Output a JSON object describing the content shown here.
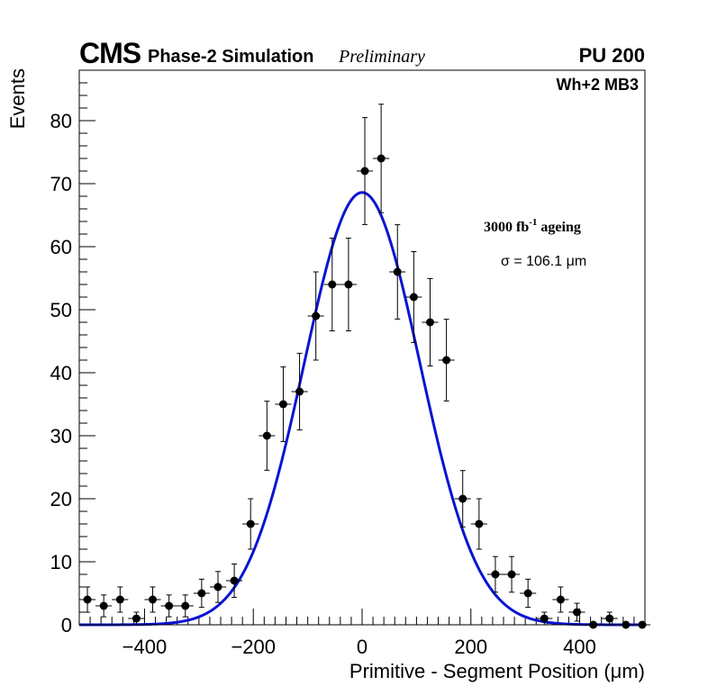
{
  "header": {
    "experiment": "CMS",
    "subtitle": "Phase-2 Simulation",
    "status": "Preliminary",
    "pileup": "PU 200",
    "chamber": "Wh+2 MB3"
  },
  "annotations": {
    "ageing_main": "3000 fb",
    "ageing_sup": "-1",
    "ageing_tail": " ageing",
    "sigma": "σ = 106.1 μm"
  },
  "chart_data": {
    "type": "scatter",
    "xlabel": "Primitive - Segment Position (μm)",
    "ylabel": "Events",
    "xlim": [
      -520,
      520
    ],
    "ylim": [
      0,
      88
    ],
    "x_ticks": [
      -400,
      -200,
      0,
      200,
      400
    ],
    "x_tick_labels": [
      "−400",
      "−200",
      "0",
      "200",
      "400"
    ],
    "y_ticks": [
      0,
      10,
      20,
      30,
      40,
      50,
      60,
      70,
      80
    ],
    "y_tick_labels": [
      "0",
      "10",
      "20",
      "30",
      "40",
      "50",
      "60",
      "70",
      "80"
    ],
    "bin_half_width": 15,
    "x": [
      -505,
      -475,
      -445,
      -415,
      -385,
      -355,
      -325,
      -295,
      -265,
      -235,
      -205,
      -175,
      -145,
      -115,
      -85,
      -55,
      -25,
      5,
      35,
      65,
      95,
      125,
      155,
      185,
      215,
      245,
      275,
      305,
      335,
      365,
      395,
      425,
      455,
      485,
      515
    ],
    "y": [
      4,
      3,
      4,
      1,
      4,
      3,
      3,
      5,
      6,
      7,
      16,
      30,
      35,
      37,
      49,
      54,
      54,
      72,
      74,
      56,
      52,
      48,
      42,
      20,
      16,
      8,
      8,
      5,
      1,
      4,
      2,
      0,
      1,
      0,
      0
    ],
    "fit": {
      "function": "gaussian",
      "color": "#0a14d2",
      "amplitude": 68.6,
      "mean": 0,
      "sigma": 106.1
    },
    "marker_color": "#000000"
  }
}
